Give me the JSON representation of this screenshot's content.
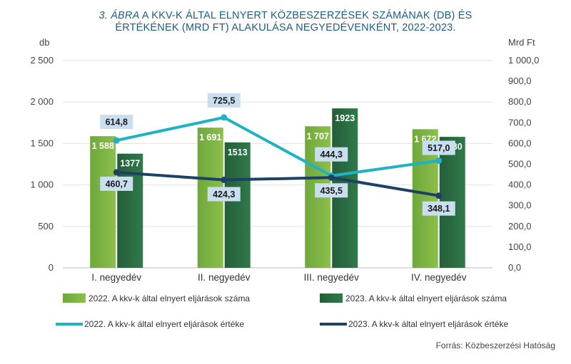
{
  "title": {
    "prefix": "3. ÁBRA",
    "line1_rest": " A KKV-K ÁLTAL ELNYERT KÖZBESZERZÉSEK SZÁMÁNAK (DB) ÉS",
    "line2": "ÉRTÉKÉNEK (MRD FT) ALAKULÁSA NEGYEDÉVENKÉNT, 2022-2023."
  },
  "source": "Forrás: Közbeszerzési Hatóság",
  "colors": {
    "bar2022": "#8cbf4b",
    "bar2023": "#245e3a",
    "line2022": "#1fb2c5",
    "line2023": "#1e3f66",
    "labelbox": "#c9dff0"
  },
  "chart_data": {
    "type": "bar",
    "categories": [
      "I. negyedév",
      "II. negyedév",
      "III. negyedév",
      "IV. negyedév"
    ],
    "left_axis": {
      "label": "db",
      "ylim": [
        0,
        2500
      ],
      "ticks": [
        0,
        500,
        1000,
        1500,
        2000,
        2500
      ],
      "tick_labels": [
        "0",
        "500",
        "1 000",
        "1 500",
        "2 000",
        "2 500"
      ]
    },
    "right_axis": {
      "label": "Mrd Ft",
      "ylim": [
        0,
        1000
      ],
      "ticks": [
        0,
        100,
        200,
        300,
        400,
        500,
        600,
        700,
        800,
        900,
        1000
      ],
      "tick_labels": [
        "0,0",
        "100,0",
        "200,0",
        "300,0",
        "400,0",
        "500,0",
        "600,0",
        "700,0",
        "800,0",
        "900,0",
        "1 000,0"
      ]
    },
    "bar_series": [
      {
        "name": "2022. A kkv-k által elnyert eljárások száma",
        "values": [
          1588,
          1691,
          1707,
          1672
        ],
        "labels": [
          "1 588",
          "1 691",
          "1 707",
          "1 672"
        ],
        "color_key": "bar2022"
      },
      {
        "name": "2023. A kkv-k által elnyert eljárások száma",
        "values": [
          1377,
          1513,
          1923,
          1580
        ],
        "labels": [
          "1377",
          "1513",
          "1923",
          "1580"
        ],
        "color_key": "bar2023"
      }
    ],
    "line_series": [
      {
        "name": "2022. A kkv-k által elnyert eljárások értéke",
        "values": [
          614.8,
          725.5,
          444.3,
          517.0
        ],
        "labels": [
          "614,8",
          "725,5",
          "444,3",
          "517,0"
        ],
        "color_key": "line2022"
      },
      {
        "name": "2023. A kkv-k által elnyert eljárások értéke",
        "values": [
          460.7,
          424.3,
          435.5,
          348.1
        ],
        "labels": [
          "460,7",
          "424,3",
          "435,5",
          "348,1"
        ],
        "color_key": "line2023"
      }
    ],
    "grid": true,
    "legend": "bottom"
  }
}
